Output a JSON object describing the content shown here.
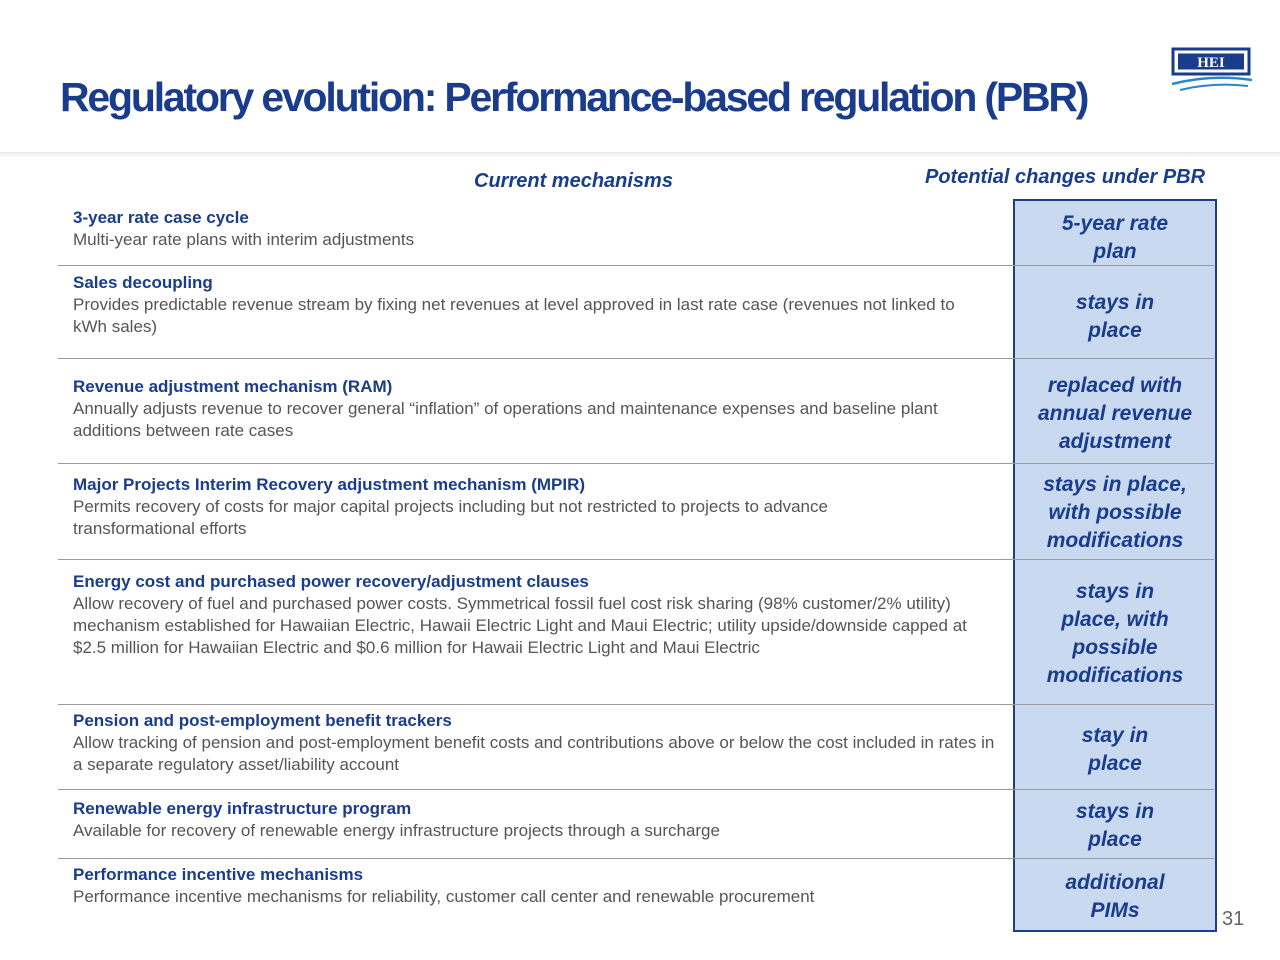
{
  "slide": {
    "title": "Regulatory evolution:  Performance-based regulation (PBR)",
    "page_number": "31"
  },
  "logo": {
    "text": "HEI",
    "color": "#1a3c8c"
  },
  "columns": {
    "current_heading": "Current mechanisms",
    "pbr_heading": "Potential changes under PBR"
  },
  "rows": [
    {
      "title": "3-year rate case cycle",
      "description": "Multi-year rate plans with interim adjustments",
      "change": "5-year rate plan"
    },
    {
      "title": "Sales decoupling",
      "description": "Provides predictable revenue stream by fixing net revenues at level approved in last rate case (revenues not linked to kWh sales)",
      "change": "stays in place"
    },
    {
      "title": "Revenue adjustment mechanism (RAM)",
      "description": "Annually adjusts revenue to recover general “inflation” of operations and maintenance expenses and baseline plant additions between rate cases",
      "change": "replaced with annual revenue adjustment"
    },
    {
      "title": "Major Projects Interim Recovery adjustment mechanism (MPIR)",
      "description": "Permits recovery of costs for major capital projects including but not restricted to projects to advance transformational efforts",
      "change": "stays in place, with possible modifications"
    },
    {
      "title": "Energy cost and purchased power recovery/adjustment clauses",
      "description": "Allow recovery of fuel and purchased power costs. Symmetrical fossil fuel cost risk sharing (98% customer/2% utility) mechanism established for Hawaiian Electric, Hawaii Electric Light and Maui Electric; utility upside/downside capped at $2.5 million for Hawaiian Electric and $0.6 million for Hawaii Electric Light and Maui Electric",
      "change": "stays in place, with possible modifications"
    },
    {
      "title": "Pension and post-employment benefit trackers",
      "description": "Allow tracking of pension and post-employment benefit costs and contributions above or below the cost included in rates in a separate regulatory asset/liability account",
      "change": "stay in place"
    },
    {
      "title": "Renewable energy infrastructure program",
      "description": "Available for recovery of renewable energy infrastructure projects through a surcharge",
      "change": "stays in place"
    },
    {
      "title": "Performance incentive mechanisms",
      "description": "Performance incentive mechanisms for reliability, customer call center and renewable procurement",
      "change": "additional PIMs"
    }
  ]
}
